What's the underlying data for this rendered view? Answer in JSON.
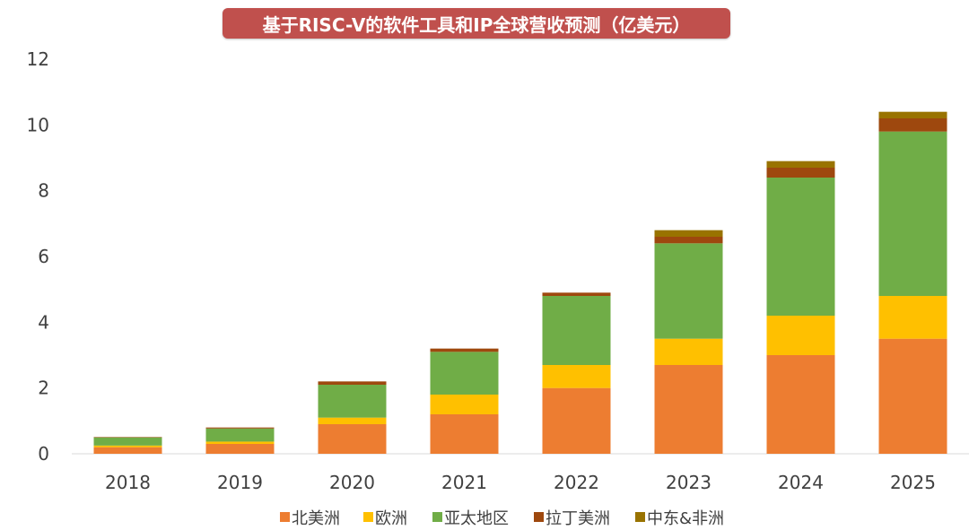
{
  "chart_data": {
    "type": "bar",
    "stacked": true,
    "title": "基于RISC-V的软件工具和IP全球营收预测（亿美元）",
    "categories": [
      "2018",
      "2019",
      "2020",
      "2021",
      "2022",
      "2023",
      "2024",
      "2025"
    ],
    "ylim": [
      0,
      12
    ],
    "yticks": [
      "0",
      "2",
      "4",
      "6",
      "8",
      "10",
      "12"
    ],
    "grid": false,
    "legend_position": "bottom",
    "series": [
      {
        "name": "北美洲",
        "color": "#ed7d31",
        "values": [
          0.2,
          0.3,
          0.9,
          1.2,
          2.0,
          2.7,
          3.0,
          3.5
        ]
      },
      {
        "name": "欧洲",
        "color": "#ffc000",
        "values": [
          0.05,
          0.07,
          0.2,
          0.6,
          0.7,
          0.8,
          1.2,
          1.3
        ]
      },
      {
        "name": "亚太地区",
        "color": "#70ad47",
        "values": [
          0.25,
          0.4,
          1.0,
          1.3,
          2.1,
          2.9,
          4.2,
          5.0
        ]
      },
      {
        "name": "拉丁美洲",
        "color": "#9e480e",
        "values": [
          0.01,
          0.03,
          0.1,
          0.1,
          0.1,
          0.2,
          0.3,
          0.4
        ]
      },
      {
        "name": "中东&非洲",
        "color": "#997300",
        "values": [
          0.0,
          0.0,
          0.0,
          0.0,
          0.0,
          0.2,
          0.2,
          0.2
        ]
      }
    ]
  }
}
